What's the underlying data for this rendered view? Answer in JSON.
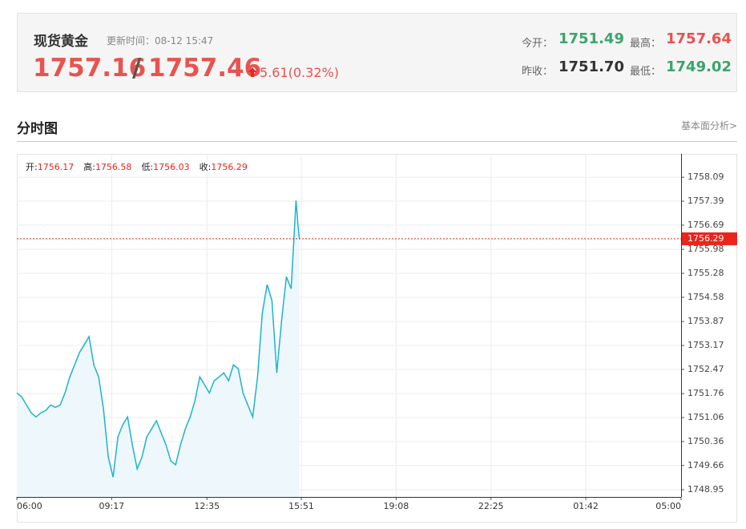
{
  "quote": {
    "name": "现货黄金",
    "update_time": "更新时间：08-12 15:47",
    "bid": "1757.16",
    "separator": "/",
    "ask": "1757.46",
    "change": "5.61(0.32%)",
    "stats": [
      {
        "label": "今开：",
        "value": "1751.49"
      },
      {
        "label": "最高：",
        "value": "1757.64"
      },
      {
        "label": "昨收：",
        "value": "1751.70"
      },
      {
        "label": "最低：",
        "value": "1749.02"
      }
    ]
  },
  "section": {
    "title": "分时图",
    "link": "基本面分析>"
  },
  "chart_data": {
    "type": "line",
    "info": [
      {
        "label": "开:",
        "value": 1756.17
      },
      {
        "label": "高:",
        "value": 1756.58
      },
      {
        "label": "低:",
        "value": 1756.03
      },
      {
        "label": "收:",
        "value": 1756.29
      }
    ],
    "x": [
      "06:00",
      "06:10",
      "06:20",
      "06:30",
      "06:40",
      "06:50",
      "07:00",
      "07:10",
      "07:20",
      "07:30",
      "07:40",
      "07:50",
      "08:00",
      "08:10",
      "08:20",
      "08:30",
      "08:40",
      "08:50",
      "09:00",
      "09:10",
      "09:20",
      "09:30",
      "09:40",
      "09:50",
      "10:00",
      "10:10",
      "10:20",
      "10:30",
      "10:40",
      "10:50",
      "11:00",
      "11:10",
      "11:20",
      "11:30",
      "11:40",
      "11:50",
      "12:00",
      "12:10",
      "12:20",
      "12:30",
      "12:40",
      "12:50",
      "13:00",
      "13:10",
      "13:20",
      "13:30",
      "13:40",
      "13:50",
      "14:00",
      "14:10",
      "14:20",
      "14:30",
      "14:40",
      "14:50",
      "15:00",
      "15:10",
      "15:20",
      "15:30",
      "15:40",
      "15:44",
      "15:47"
    ],
    "series": [
      {
        "name": "现货黄金",
        "color": "#1cb3d0",
        "values": [
          1751.78,
          1751.67,
          1751.43,
          1751.2,
          1751.08,
          1751.2,
          1751.27,
          1751.43,
          1751.36,
          1751.43,
          1751.78,
          1752.25,
          1752.6,
          1752.96,
          1753.19,
          1753.43,
          1752.6,
          1752.25,
          1751.32,
          1749.91,
          1749.32,
          1750.5,
          1750.85,
          1751.08,
          1750.26,
          1749.56,
          1749.91,
          1750.5,
          1750.73,
          1750.97,
          1750.61,
          1750.26,
          1749.79,
          1749.68,
          1750.26,
          1750.73,
          1751.08,
          1751.55,
          1752.25,
          1752.02,
          1751.78,
          1752.14,
          1752.25,
          1752.37,
          1752.14,
          1752.6,
          1752.49,
          1751.78,
          1751.43,
          1751.08,
          1752.25,
          1754.13,
          1754.95,
          1754.48,
          1752.37,
          1753.89,
          1755.18,
          1754.83,
          1757.41,
          1756.71,
          1756.29
        ]
      }
    ],
    "xlim": [
      "06:00",
      "05:00"
    ],
    "xticks": [
      "06:00",
      "09:17",
      "12:35",
      "15:51",
      "19:08",
      "22:25",
      "01:42",
      "05:00"
    ],
    "ylim": [
      1748.74,
      1758.75
    ],
    "yticks": [
      1748.95,
      1749.66,
      1750.36,
      1751.06,
      1751.76,
      1752.47,
      1753.17,
      1753.87,
      1754.58,
      1755.28,
      1755.98,
      1756.69,
      1757.39,
      1758.09
    ],
    "last_price": 1756.29,
    "last_color": "#e8261d",
    "area_color": "#eef8fc",
    "grid": true
  }
}
